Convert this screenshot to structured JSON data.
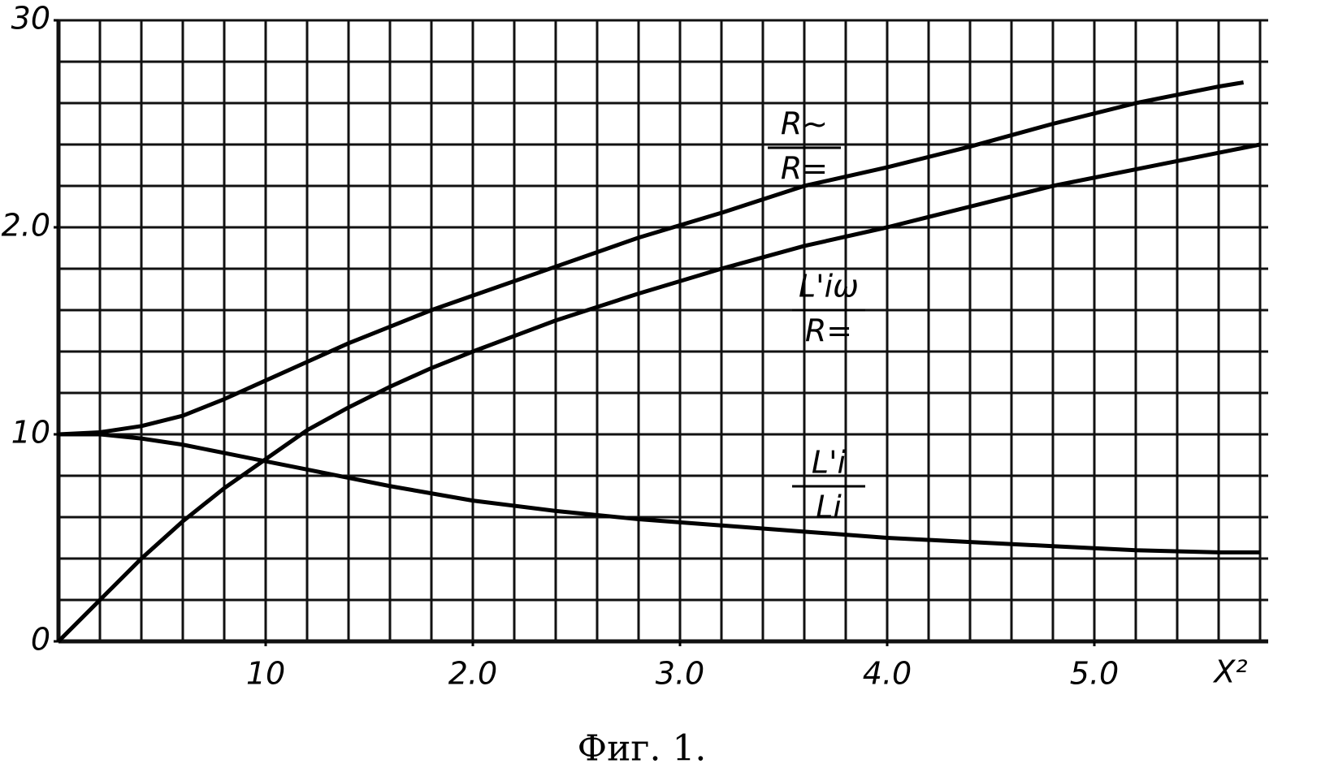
{
  "chart_data": {
    "type": "line",
    "caption": "Фиг. 1.",
    "xlabel": "X²",
    "xlim": [
      0,
      5.8
    ],
    "ylim": [
      0,
      3.0
    ],
    "xticks": [
      {
        "value": 1,
        "label": "10"
      },
      {
        "value": 2,
        "label": "2.0"
      },
      {
        "value": 3,
        "label": "3.0"
      },
      {
        "value": 4,
        "label": "4.0"
      },
      {
        "value": 5,
        "label": "5.0"
      }
    ],
    "yticks": [
      0,
      {
        "value": 1,
        "label": "10"
      },
      {
        "value": 2,
        "label": "2.0"
      },
      {
        "value": 3,
        "label": "30"
      }
    ],
    "grid": true,
    "xgrid": [
      0,
      0.2,
      0.4,
      0.6,
      0.8,
      1.0,
      1.2,
      1.4,
      1.6,
      1.8,
      2.0,
      2.2,
      2.4,
      2.6,
      2.8,
      3.0,
      3.2,
      3.4,
      3.6,
      3.8,
      4.0,
      4.2,
      4.4,
      4.6,
      4.8,
      5.0,
      5.2,
      5.4,
      5.6,
      5.8
    ],
    "ygrid": [
      0,
      0.2,
      0.4,
      0.6,
      0.8,
      1.0,
      1.2,
      1.4,
      1.6,
      1.8,
      2.0,
      2.2,
      2.4,
      2.6,
      2.8,
      3.0
    ],
    "series": [
      {
        "name": {
          "top": "R~",
          "bottom": "R="
        },
        "color": "#000000",
        "x": [
          0,
          0.2,
          0.4,
          0.6,
          0.8,
          1.0,
          1.2,
          1.4,
          1.6,
          1.8,
          2.0,
          2.4,
          2.8,
          3.2,
          3.6,
          4.0,
          4.4,
          4.8,
          5.2,
          5.6,
          5.72
        ],
        "values": [
          1.0,
          1.01,
          1.04,
          1.09,
          1.17,
          1.26,
          1.35,
          1.44,
          1.52,
          1.6,
          1.67,
          1.81,
          1.95,
          2.07,
          2.2,
          2.29,
          2.39,
          2.5,
          2.6,
          2.68,
          2.7
        ]
      },
      {
        "name": {
          "top": "L'iω",
          "bottom": "R="
        },
        "color": "#000000",
        "x": [
          0,
          0.2,
          0.4,
          0.6,
          0.8,
          1.0,
          1.2,
          1.4,
          1.6,
          1.8,
          2.0,
          2.4,
          2.8,
          3.2,
          3.6,
          4.0,
          4.4,
          4.8,
          5.2,
          5.6,
          5.8
        ],
        "values": [
          0,
          0.2,
          0.4,
          0.58,
          0.74,
          0.88,
          1.02,
          1.13,
          1.23,
          1.32,
          1.4,
          1.55,
          1.68,
          1.8,
          1.91,
          2.0,
          2.1,
          2.2,
          2.28,
          2.36,
          2.4
        ]
      },
      {
        "name": {
          "top": "L'i",
          "bottom": "Li"
        },
        "color": "#000000",
        "x": [
          0,
          0.2,
          0.4,
          0.6,
          0.8,
          1.0,
          1.2,
          1.4,
          1.6,
          2.0,
          2.4,
          2.8,
          3.2,
          3.6,
          4.0,
          4.4,
          4.8,
          5.2,
          5.6,
          5.8
        ],
        "values": [
          1.0,
          1.0,
          0.98,
          0.95,
          0.91,
          0.87,
          0.83,
          0.79,
          0.75,
          0.68,
          0.63,
          0.59,
          0.56,
          0.53,
          0.5,
          0.48,
          0.46,
          0.44,
          0.43,
          0.43
        ]
      }
    ]
  }
}
